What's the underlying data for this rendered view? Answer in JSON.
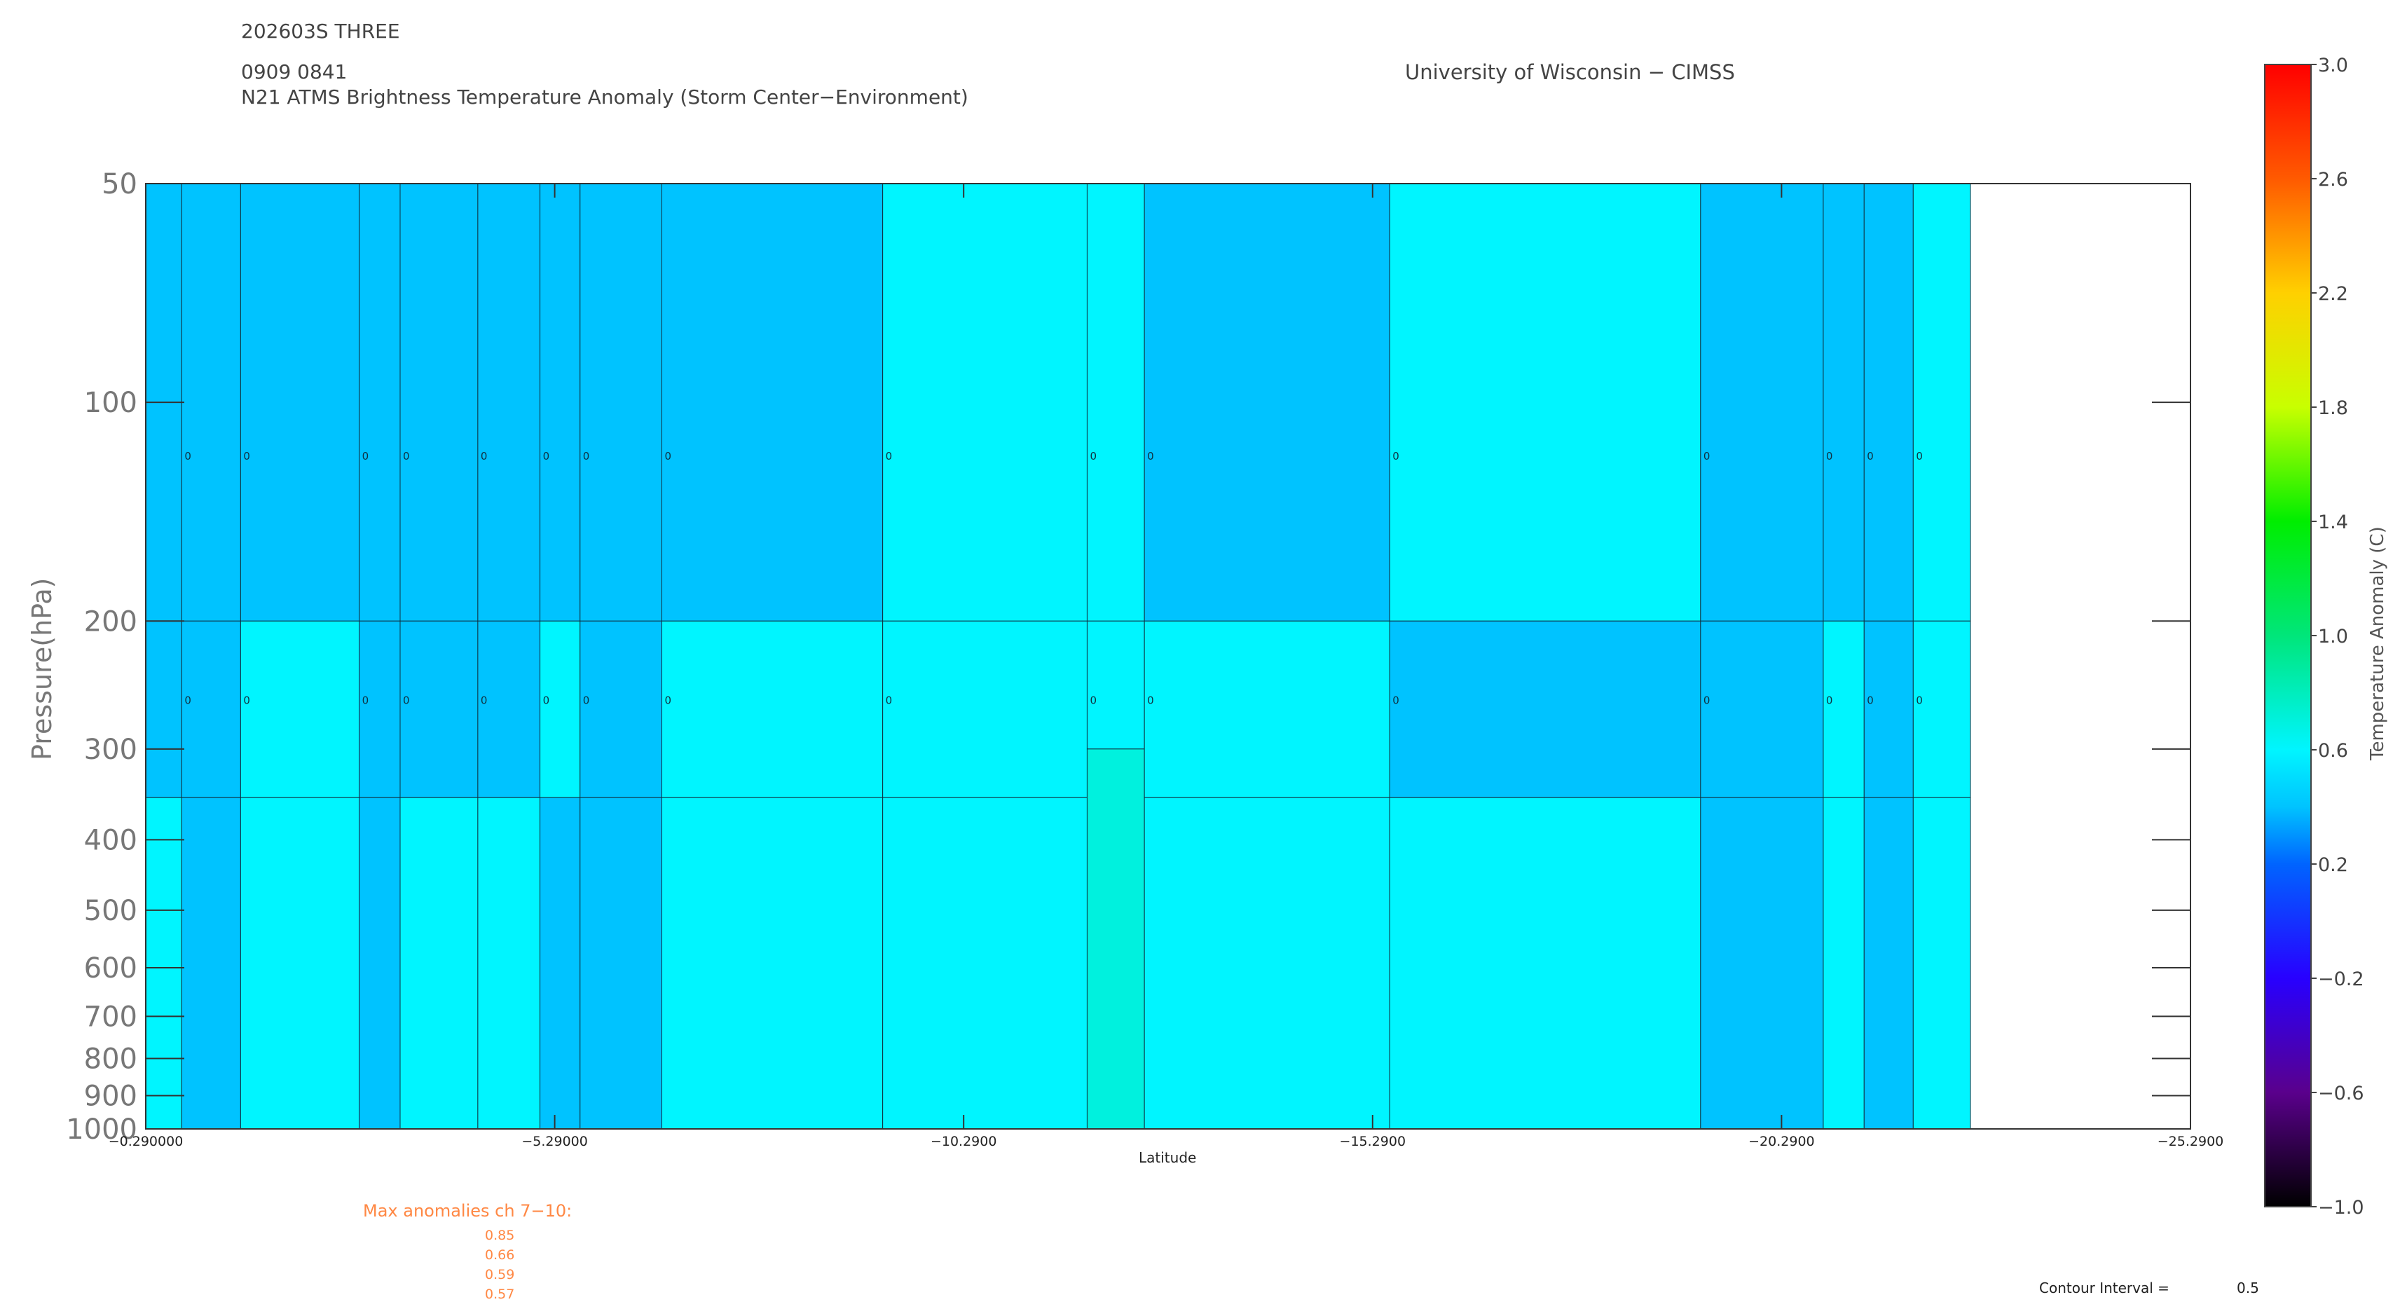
{
  "header": {
    "storm": "202603S THREE",
    "time": "0909 0841",
    "title": "N21 ATMS Brightness Temperature Anomaly (Storm Center−Environment)",
    "institution": "University of Wisconsin − CIMSS"
  },
  "chart_data": {
    "type": "heatmap",
    "title": "N21 ATMS Brightness Temperature Anomaly (Storm Center−Environment)",
    "xlabel": "Latitude",
    "ylabel": "Pressure(hPa)",
    "x_ticks": [
      "−0.290000",
      "−5.29000",
      "−10.2900",
      "−15.2900",
      "−20.2900",
      "−25.2900"
    ],
    "x_tick_values": [
      -0.29,
      -5.29,
      -10.29,
      -15.29,
      -20.29,
      -25.29
    ],
    "xlim": [
      -0.29,
      -25.29
    ],
    "y_scale": "log",
    "ylim": [
      1000,
      50
    ],
    "y_ticks": [
      50,
      100,
      200,
      300,
      400,
      500,
      600,
      700,
      800,
      900,
      1000
    ],
    "data_extent_x": [
      -0.29,
      -22.6
    ],
    "grid": false,
    "contour_interval": 0.5,
    "contour_label": "0",
    "columns": [
      {
        "x0": -0.29,
        "x1": -0.73,
        "top": 0.4,
        "mid": 0.4,
        "bot": 0.6,
        "split": 350
      },
      {
        "x0": -0.73,
        "x1": -1.45,
        "top": 0.4,
        "mid": 0.4,
        "bot": 0.4,
        "split": 350
      },
      {
        "x0": -1.45,
        "x1": -2.9,
        "top": 0.4,
        "mid": 0.6,
        "bot": 0.6,
        "split": 350
      },
      {
        "x0": -2.9,
        "x1": -3.4,
        "top": 0.4,
        "mid": 0.4,
        "bot": 0.4,
        "split": 350
      },
      {
        "x0": -3.4,
        "x1": -4.35,
        "top": 0.4,
        "mid": 0.4,
        "bot": 0.6,
        "split": 350
      },
      {
        "x0": -4.35,
        "x1": -5.11,
        "top": 0.4,
        "mid": 0.4,
        "bot": 0.6,
        "split": 350
      },
      {
        "x0": -5.11,
        "x1": -5.6,
        "top": 0.4,
        "mid": 0.6,
        "bot": 0.4,
        "split": 350
      },
      {
        "x0": -5.6,
        "x1": -6.6,
        "top": 0.4,
        "mid": 0.4,
        "bot": 0.4,
        "split": 350
      },
      {
        "x0": -6.6,
        "x1": -9.3,
        "top": 0.4,
        "mid": 0.6,
        "bot": 0.6,
        "split": 350
      },
      {
        "x0": -9.3,
        "x1": -11.8,
        "top": 0.6,
        "mid": 0.6,
        "bot": 0.6,
        "split": 350
      },
      {
        "x0": -11.8,
        "x1": -12.5,
        "top": 0.6,
        "mid": 0.6,
        "bot": 0.7,
        "split": 300
      },
      {
        "x0": -12.5,
        "x1": -15.5,
        "top": 0.4,
        "mid": 0.6,
        "bot": 0.6,
        "split": 350
      },
      {
        "x0": -15.5,
        "x1": -19.3,
        "top": 0.6,
        "mid": 0.4,
        "bot": 0.6,
        "split": 350
      },
      {
        "x0": -19.3,
        "x1": -20.8,
        "top": 0.4,
        "mid": 0.4,
        "bot": 0.4,
        "split": 350
      },
      {
        "x0": -20.8,
        "x1": -21.3,
        "top": 0.4,
        "mid": 0.6,
        "bot": 0.6,
        "split": 350
      },
      {
        "x0": -21.3,
        "x1": -21.9,
        "top": 0.4,
        "mid": 0.4,
        "bot": 0.4,
        "split": 350
      },
      {
        "x0": -21.9,
        "x1": -22.6,
        "top": 0.6,
        "mid": 0.6,
        "bot": 0.6,
        "split": 350
      }
    ],
    "colorbar": {
      "label": "Temperature Anomaly (C)",
      "range": [
        -1.0,
        3.0
      ],
      "ticks": [
        "3.0",
        "2.6",
        "2.2",
        "1.8",
        "1.4",
        "1.0",
        "0.6",
        "0.2",
        "−0.2",
        "−0.6",
        "−1.0"
      ],
      "tick_values": [
        3.0,
        2.6,
        2.2,
        1.8,
        1.4,
        1.0,
        0.6,
        0.2,
        -0.2,
        -0.6,
        -1.0
      ],
      "stops": [
        {
          "v": -1.0,
          "color": "#000000"
        },
        {
          "v": -0.6,
          "color": "#5a008c"
        },
        {
          "v": -0.2,
          "color": "#2800ff"
        },
        {
          "v": 0.2,
          "color": "#0064ff"
        },
        {
          "v": 0.4,
          "color": "#00c3ff"
        },
        {
          "v": 0.6,
          "color": "#00f5ff"
        },
        {
          "v": 1.0,
          "color": "#00e67a"
        },
        {
          "v": 1.4,
          "color": "#00ee00"
        },
        {
          "v": 1.8,
          "color": "#c8ff00"
        },
        {
          "v": 2.2,
          "color": "#ffd000"
        },
        {
          "v": 2.6,
          "color": "#ff5a00"
        },
        {
          "v": 3.0,
          "color": "#ff0000"
        }
      ]
    }
  },
  "max_anomalies": {
    "label": "Max anomalies ch 7−10:",
    "values": [
      "0.85",
      "0.66",
      "0.59",
      "0.57"
    ]
  },
  "contour": {
    "label": "Contour Interval =",
    "value": "0.5"
  }
}
